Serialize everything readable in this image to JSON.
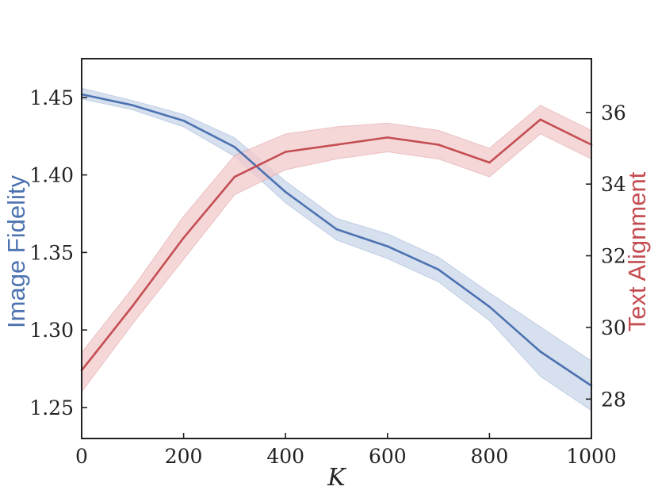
{
  "chart_data": {
    "type": "line",
    "xlabel": "K",
    "ylabel_left": "Image Fidelity",
    "ylabel_right": "Text Alignment",
    "xlim": [
      0,
      1000
    ],
    "ylim_left": [
      1.23,
      1.475
    ],
    "ylim_right": [
      26.9,
      37.5
    ],
    "x_ticks": [
      "0",
      "200",
      "400",
      "600",
      "800",
      "1000"
    ],
    "y_left_ticks": [
      "1.25",
      "1.30",
      "1.35",
      "1.40",
      "1.45"
    ],
    "y_right_ticks": [
      "28",
      "30",
      "32",
      "34",
      "36"
    ],
    "grid": false,
    "x": [
      0,
      100,
      200,
      300,
      400,
      500,
      600,
      700,
      800,
      900,
      1000
    ],
    "series": [
      {
        "name": "Image Fidelity",
        "axis": "left",
        "color": "#4c72b0",
        "values": [
          1.452,
          1.445,
          1.435,
          1.418,
          1.389,
          1.365,
          1.354,
          1.339,
          1.315,
          1.286,
          1.264
        ],
        "lower": [
          1.449,
          1.442,
          1.431,
          1.412,
          1.382,
          1.358,
          1.346,
          1.331,
          1.306,
          1.27,
          1.248
        ],
        "upper": [
          1.456,
          1.448,
          1.439,
          1.424,
          1.396,
          1.372,
          1.362,
          1.347,
          1.324,
          1.302,
          1.28
        ]
      },
      {
        "name": "Text Alignment",
        "axis": "right",
        "color": "#c44e52",
        "values": [
          28.8,
          30.6,
          32.5,
          34.2,
          34.9,
          35.1,
          35.3,
          35.1,
          34.6,
          35.8,
          35.1
        ],
        "lower": [
          28.2,
          30.1,
          31.9,
          33.7,
          34.4,
          34.7,
          34.9,
          34.7,
          34.2,
          35.4,
          34.7
        ],
        "upper": [
          29.3,
          31.1,
          33.1,
          34.8,
          35.4,
          35.6,
          35.7,
          35.5,
          35.0,
          36.2,
          35.5
        ]
      }
    ]
  },
  "colors": {
    "left_axis_color": "#4c72b0",
    "right_axis_color": "#c44e52",
    "left_band_fill": "#c9d5ea",
    "right_band_fill": "#f2c9cb"
  }
}
